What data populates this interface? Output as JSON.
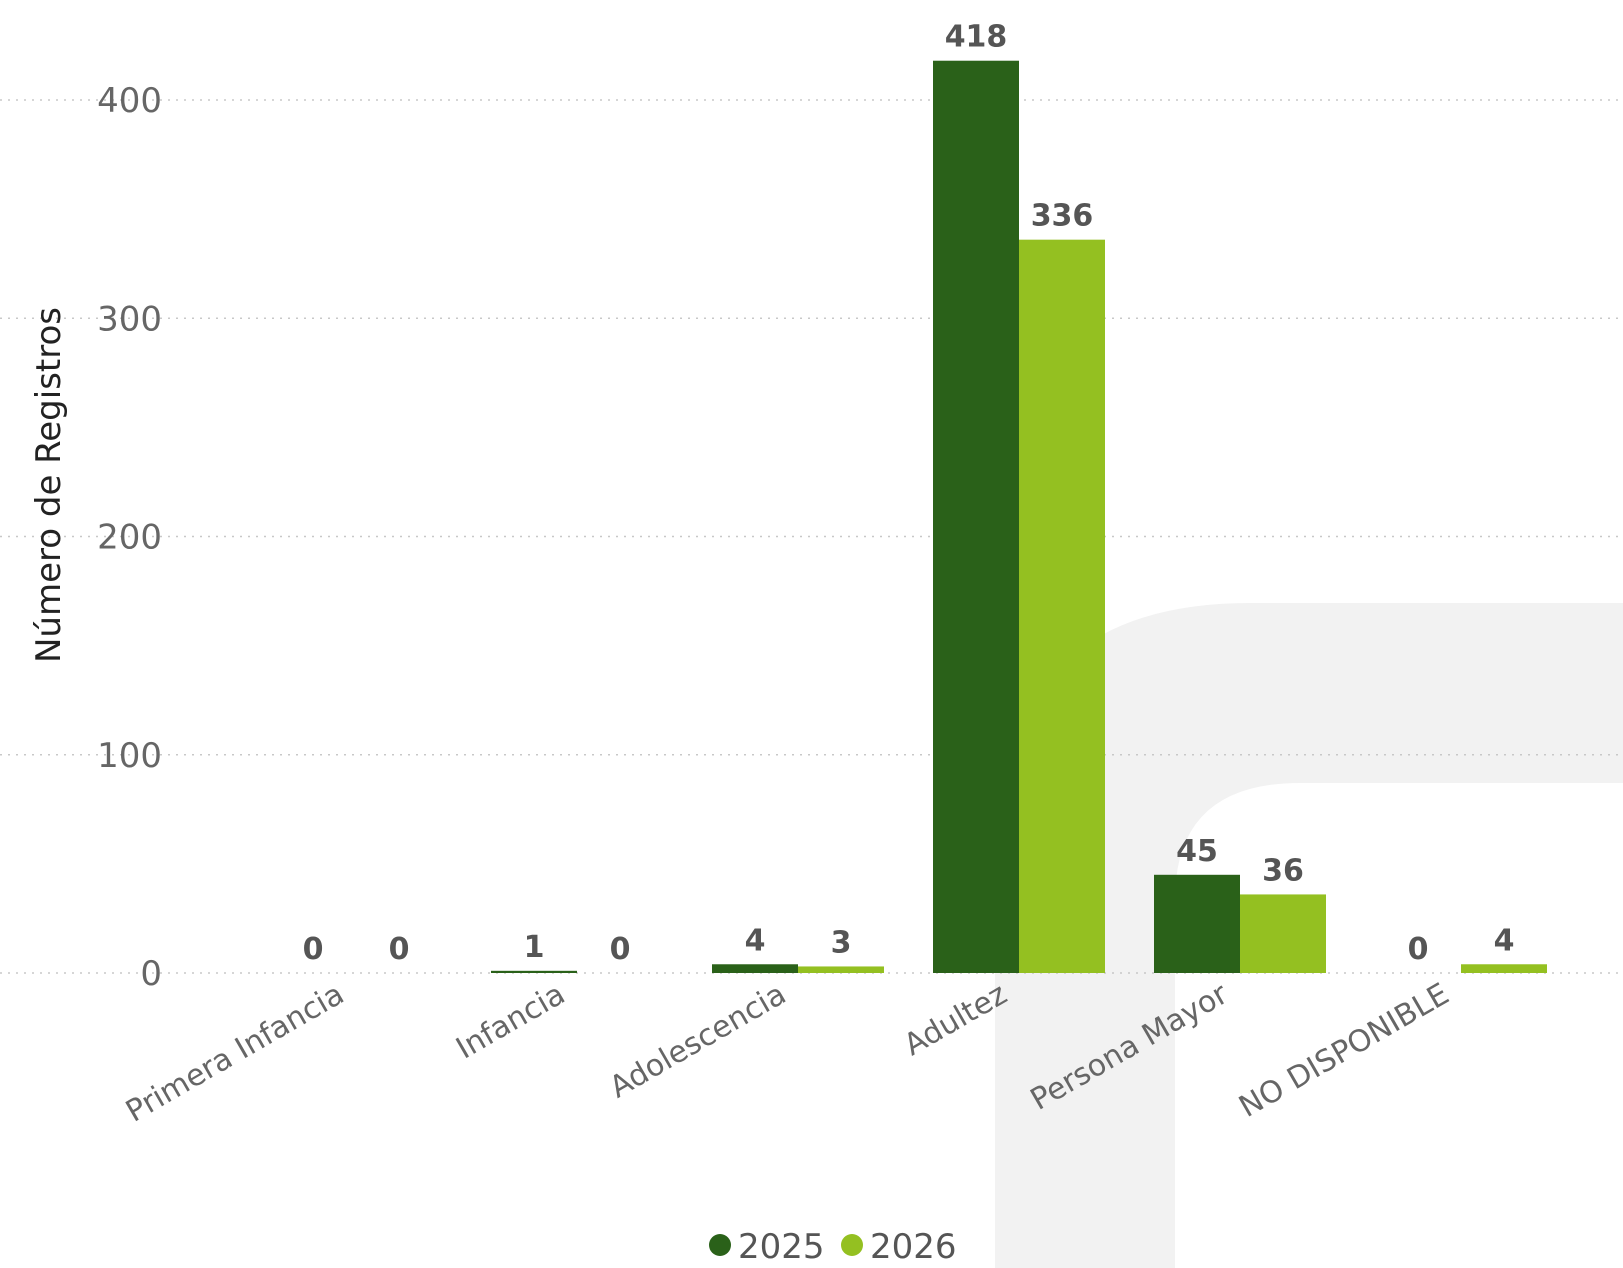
{
  "chart_data": {
    "type": "bar",
    "title": "",
    "xlabel": "",
    "ylabel": "Número de Registros",
    "ylim": [
      0,
      420
    ],
    "yticks": [
      0,
      100,
      200,
      300,
      400
    ],
    "grid": true,
    "legend_position": "bottom-center",
    "categories": [
      "Primera Infancia",
      "Infancia",
      "Adolescencia",
      "Adultez",
      "Persona Mayor",
      "NO DISPONIBLE"
    ],
    "series": [
      {
        "name": "2025",
        "color": "#2a6119",
        "values": [
          0,
          1,
          4,
          418,
          45,
          0
        ]
      },
      {
        "name": "2026",
        "color": "#94c021",
        "values": [
          0,
          0,
          3,
          336,
          36,
          4
        ]
      }
    ]
  }
}
